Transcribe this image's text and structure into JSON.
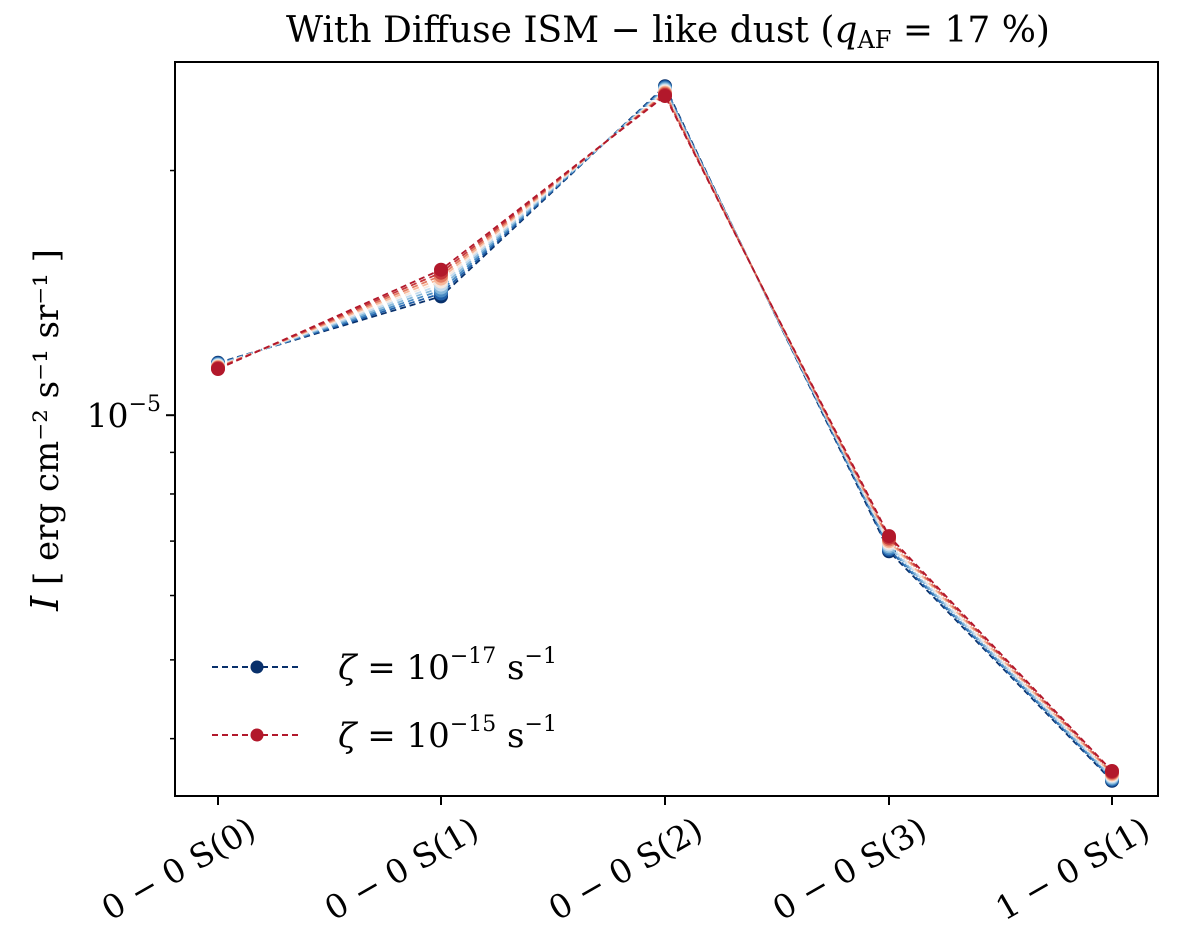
{
  "chart_data": {
    "type": "line",
    "title_main": "With Diffuse ISM − like dust (",
    "title_q": "q",
    "title_q_sub": "AF",
    "title_rest": " = 17 %)",
    "ylabel_var": "I",
    "ylabel_units": "[ erg cm⁻² s⁻¹ sr⁻¹ ]",
    "categories": [
      "0 − 0 S(0)",
      "0 − 0 S(1)",
      "0 − 0 S(2)",
      "0 − 0 S(3)",
      "1 − 0 S(1)"
    ],
    "y_scale": "log",
    "ylim": [
      3.4e-06,
      2.72e-05
    ],
    "yticks": [
      {
        "value": 1e-05,
        "base": "10",
        "exp": "−5"
      }
    ],
    "grid": false,
    "legend_position": "lower-left",
    "series_endpoints": [
      {
        "label_var": "ζ",
        "label_mid": " = 10",
        "label_exp": "−17",
        "label_unit": " s",
        "label_unit_exp": "−1",
        "color": "#08306b",
        "values": [
          1.16e-05,
          1.4e-05,
          2.54e-05,
          6.8e-06,
          3.55e-06
        ]
      },
      {
        "label_var": "ζ",
        "label_mid": " = 10",
        "label_exp": "−15",
        "label_unit": " s",
        "label_unit_exp": "−1",
        "color": "#b2182b",
        "values": [
          1.14e-05,
          1.51e-05,
          2.47e-05,
          7.1e-06,
          3.65e-06
        ]
      }
    ],
    "colormap": [
      "#08306b",
      "#1f5fa8",
      "#4a8cc4",
      "#86b8db",
      "#c3dbee",
      "#f4e8e0",
      "#f7b79a",
      "#e27b62",
      "#c6373b",
      "#b2182b"
    ],
    "line_style": "dashed",
    "marker": "circle"
  }
}
